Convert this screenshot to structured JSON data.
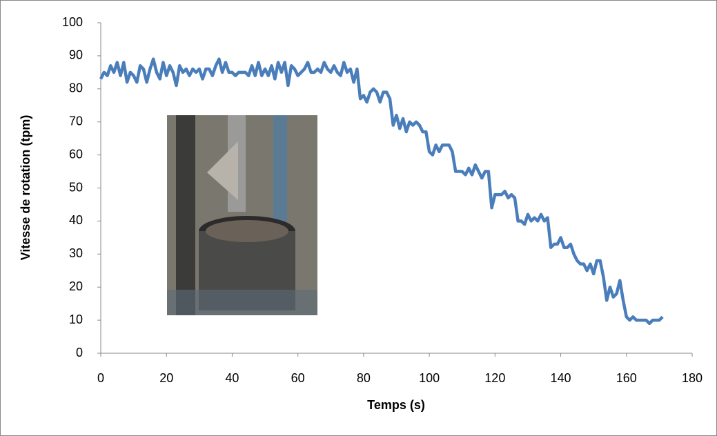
{
  "chart_data": {
    "type": "line",
    "x_label": "Temps (s)",
    "y_label": "Vitesse de rotation (tpm)",
    "x": [
      0,
      1,
      2,
      3,
      4,
      5,
      6,
      7,
      8,
      9,
      10,
      11,
      12,
      13,
      14,
      15,
      16,
      17,
      18,
      19,
      20,
      21,
      22,
      23,
      24,
      25,
      26,
      27,
      28,
      29,
      30,
      31,
      32,
      33,
      34,
      35,
      36,
      37,
      38,
      39,
      40,
      41,
      42,
      43,
      44,
      45,
      46,
      47,
      48,
      49,
      50,
      51,
      52,
      53,
      54,
      55,
      56,
      57,
      58,
      59,
      60,
      61,
      62,
      63,
      64,
      65,
      66,
      67,
      68,
      69,
      70,
      71,
      72,
      73,
      74,
      75,
      76,
      77,
      78,
      79,
      80,
      81,
      82,
      83,
      84,
      85,
      86,
      87,
      88,
      89,
      90,
      91,
      92,
      93,
      94,
      95,
      96,
      97,
      98,
      99,
      100,
      101,
      102,
      103,
      104,
      105,
      106,
      107,
      108,
      109,
      110,
      111,
      112,
      113,
      114,
      115,
      116,
      117,
      118,
      119,
      120,
      121,
      122,
      123,
      124,
      125,
      126,
      127,
      128,
      129,
      130,
      131,
      132,
      133,
      134,
      135,
      136,
      137,
      138,
      139,
      140,
      141,
      142,
      143,
      144,
      145,
      146,
      147,
      148,
      149,
      150,
      151,
      152,
      153,
      154,
      155,
      156,
      157,
      158,
      159,
      160,
      161,
      162,
      163,
      164,
      165,
      166,
      167,
      168,
      169,
      170,
      171
    ],
    "series": [
      {
        "color": "#4a7ebb",
        "values": [
          83,
          85,
          84,
          87,
          85,
          88,
          84,
          88,
          82,
          85,
          84,
          82,
          87,
          86,
          82,
          86,
          89,
          85,
          83,
          88,
          84,
          87,
          85,
          81,
          87,
          85,
          86,
          84,
          86,
          85,
          86,
          83,
          86,
          86,
          84,
          87,
          89,
          85,
          88,
          85,
          85,
          84,
          85,
          85,
          85,
          84,
          87,
          84,
          88,
          84,
          86,
          84,
          87,
          83,
          88,
          85,
          88,
          81,
          87,
          86,
          84,
          85,
          86,
          88,
          85,
          85,
          86,
          85,
          88,
          86,
          85,
          87,
          85,
          84,
          88,
          85,
          86,
          82,
          86,
          77,
          78,
          76,
          79,
          80,
          79,
          76,
          79,
          79,
          77,
          69,
          72,
          68,
          71,
          67,
          70,
          69,
          70,
          69,
          67,
          67,
          61,
          60,
          63,
          61,
          63,
          63,
          63,
          61,
          55,
          55,
          55,
          54,
          56,
          54,
          57,
          55,
          53,
          55,
          55,
          44,
          48,
          48,
          48,
          49,
          47,
          48,
          47,
          40,
          40,
          39,
          42,
          40,
          41,
          40,
          42,
          40,
          41,
          32,
          33,
          33,
          35,
          32,
          32,
          33,
          30,
          28,
          27,
          27,
          25,
          27,
          24,
          28,
          28,
          23,
          16,
          20,
          17,
          18,
          22,
          16,
          11,
          10,
          11,
          10,
          10,
          10,
          10,
          9,
          10,
          10,
          10,
          11
        ]
      }
    ],
    "xlim": [
      0,
      180
    ],
    "xticks": [
      0,
      20,
      40,
      60,
      80,
      100,
      120,
      140,
      160,
      180
    ],
    "ylim": [
      0,
      100
    ],
    "yticks": [
      0,
      10,
      20,
      30,
      40,
      50,
      60,
      70,
      80,
      90,
      100
    ]
  }
}
